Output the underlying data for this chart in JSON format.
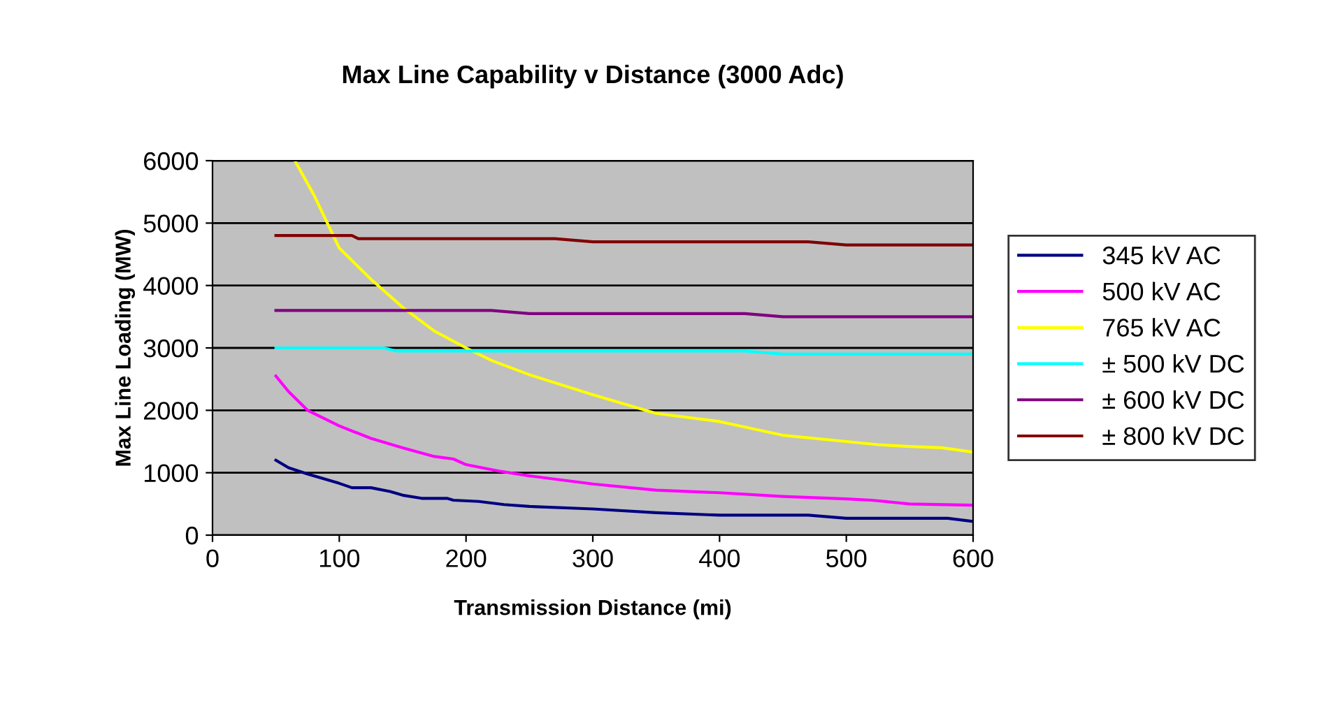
{
  "chart_data": {
    "type": "line",
    "title": "Max Line Capability v Distance (3000 Adc)",
    "xlabel": "Transmission Distance (mi)",
    "ylabel": "Max Line Loading (MW)",
    "xlim": [
      0,
      600
    ],
    "xticks": [
      0,
      100,
      200,
      300,
      400,
      500,
      600
    ],
    "ylim": [
      0,
      6000
    ],
    "yticks": [
      0,
      1000,
      2000,
      3000,
      4000,
      5000,
      6000
    ],
    "grid": "y",
    "legend": "right",
    "marker": "none",
    "line_style": "solid",
    "series": [
      {
        "name": "345 kV AC",
        "color": "#000080",
        "x": [
          50,
          60,
          75,
          100,
          110,
          125,
          140,
          150,
          165,
          185,
          190,
          210,
          230,
          250,
          300,
          350,
          400,
          470,
          500,
          560,
          580,
          600
        ],
        "values": [
          1200,
          1080,
          980,
          830,
          760,
          760,
          700,
          640,
          590,
          590,
          560,
          540,
          490,
          460,
          420,
          360,
          320,
          320,
          270,
          270,
          270,
          220
        ]
      },
      {
        "name": "500 kV AC",
        "color": "#ff00ff",
        "x": [
          50,
          60,
          75,
          100,
          125,
          150,
          175,
          190,
          200,
          225,
          250,
          300,
          350,
          400,
          450,
          500,
          520,
          550,
          600
        ],
        "values": [
          2550,
          2300,
          2000,
          1750,
          1550,
          1400,
          1260,
          1220,
          1130,
          1030,
          950,
          820,
          720,
          680,
          620,
          580,
          560,
          500,
          480
        ]
      },
      {
        "name": "765 kV AC",
        "color": "#ffff00",
        "x": [
          65,
          80,
          100,
          125,
          150,
          175,
          200,
          220,
          250,
          300,
          350,
          400,
          450,
          500,
          525,
          550,
          575,
          600
        ],
        "values": [
          6000,
          5450,
          4600,
          4100,
          3650,
          3270,
          3000,
          2800,
          2570,
          2250,
          1950,
          1820,
          1600,
          1500,
          1450,
          1420,
          1400,
          1330
        ]
      },
      {
        "name": "± 500 kV DC",
        "color": "#00ffff",
        "x": [
          50,
          135,
          145,
          420,
          450,
          600
        ],
        "values": [
          3000,
          3000,
          2950,
          2950,
          2900,
          2900
        ]
      },
      {
        "name": "± 600 kV DC",
        "color": "#800080",
        "x": [
          50,
          220,
          250,
          420,
          450,
          600
        ],
        "values": [
          3600,
          3600,
          3550,
          3550,
          3500,
          3500
        ]
      },
      {
        "name": "± 800 kV DC",
        "color": "#800000",
        "x": [
          50,
          110,
          115,
          270,
          300,
          470,
          500,
          600
        ],
        "values": [
          4800,
          4800,
          4750,
          4750,
          4700,
          4700,
          4650,
          4650
        ]
      }
    ]
  }
}
